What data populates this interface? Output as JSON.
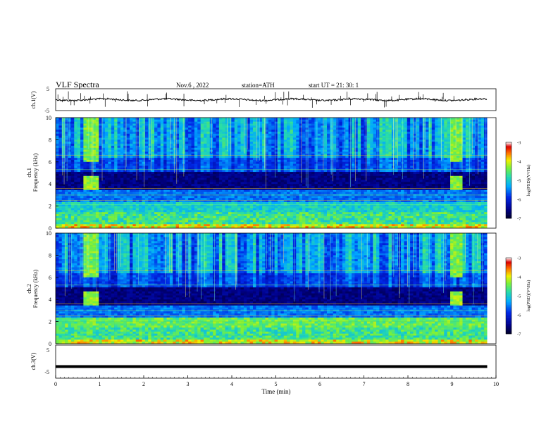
{
  "header": {
    "title": "VLF  Spectra",
    "date": "Nov.6  , 2022",
    "station": "station=ATH",
    "start": "start  UT  =   21: 30: 1"
  },
  "chart_data": [
    {
      "type": "line",
      "ylabel": "ch.1(V)",
      "yticks": [
        "5",
        "-5"
      ],
      "ylim": [
        -5,
        5
      ],
      "xlim": [
        0,
        10
      ],
      "series_color": "#000000"
    },
    {
      "type": "heatmap",
      "ylabel": "ch.1\nFrequency  (kHz)",
      "yticks": [
        "0",
        "2",
        "4",
        "6",
        "8",
        "10"
      ],
      "ylim": [
        0,
        10
      ],
      "xlim": [
        0,
        9.8
      ],
      "colorbar": {
        "label": "log(PSD)(V²/Hz)",
        "ticks": [
          "-3",
          "-4",
          "-5",
          "-6",
          "-7"
        ],
        "range": [
          -7,
          -3
        ]
      },
      "burst_intervals_min": [
        [
          0.65,
          1.0
        ],
        [
          8.95,
          9.25
        ]
      ],
      "burst_freq_khz": [
        3.5,
        4.8
      ]
    },
    {
      "type": "heatmap",
      "ylabel": "ch.2\nFrequency  (kHz)",
      "yticks": [
        "0",
        "2",
        "4",
        "6",
        "8",
        "10"
      ],
      "ylim": [
        0,
        10
      ],
      "xlim": [
        0,
        9.8
      ],
      "colorbar": {
        "label": "log(PSD)(V²/Hz)",
        "ticks": [
          "-3",
          "-4",
          "-5",
          "-6",
          "-7"
        ],
        "range": [
          -7,
          -3
        ]
      },
      "burst_intervals_min": [
        [
          0.65,
          1.0
        ],
        [
          8.95,
          9.25
        ]
      ],
      "burst_freq_khz": [
        3.5,
        4.8
      ]
    },
    {
      "type": "line",
      "ylabel": "ch.3(V)",
      "yticks": [
        "5",
        "-5"
      ],
      "ylim": [
        -5,
        5
      ],
      "xlim": [
        0,
        10
      ],
      "series_value": -1.5,
      "series_color": "#000000"
    }
  ],
  "xaxis": {
    "label": "Time  (min)",
    "ticks": [
      "0",
      "1",
      "2",
      "3",
      "4",
      "5",
      "6",
      "7",
      "8",
      "9",
      "10"
    ]
  }
}
